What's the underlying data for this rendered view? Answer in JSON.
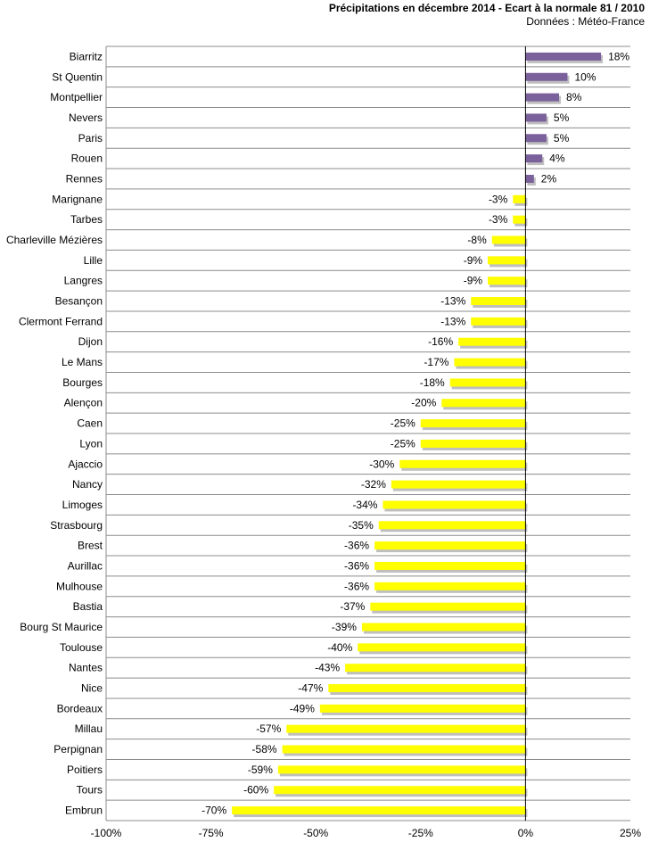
{
  "chart_data": {
    "type": "bar",
    "orientation": "horizontal",
    "title": "Précipitations en décembre 2014 - Ecart à la normale 81 / 2010",
    "subtitle": "Données : Météo-France",
    "categories": [
      "Biarritz",
      "St Quentin",
      "Montpellier",
      "Nevers",
      "Paris",
      "Rouen",
      "Rennes",
      "Marignane",
      "Tarbes",
      "Charleville Mézières",
      "Lille",
      "Langres",
      "Besançon",
      "Clermont Ferrand",
      "Dijon",
      "Le Mans",
      "Bourges",
      "Alençon",
      "Caen",
      "Lyon",
      "Ajaccio",
      "Nancy",
      "Limoges",
      "Strasbourg",
      "Brest",
      "Aurillac",
      "Mulhouse",
      "Bastia",
      "Bourg St Maurice",
      "Toulouse",
      "Nantes",
      "Nice",
      "Bordeaux",
      "Millau",
      "Perpignan",
      "Poitiers",
      "Tours",
      "Embrun"
    ],
    "values": [
      18,
      10,
      8,
      5,
      5,
      4,
      2,
      -3,
      -3,
      -8,
      -9,
      -9,
      -13,
      -13,
      -16,
      -17,
      -18,
      -20,
      -25,
      -25,
      -30,
      -32,
      -34,
      -35,
      -36,
      -36,
      -36,
      -37,
      -39,
      -40,
      -43,
      -47,
      -49,
      -57,
      -58,
      -59,
      -60,
      -70
    ],
    "value_labels": [
      "18%",
      "10%",
      "8%",
      "5%",
      "5%",
      "4%",
      "2%",
      "-3%",
      "-3%",
      "-8%",
      "-9%",
      "-9%",
      "-13%",
      "-13%",
      "-16%",
      "-17%",
      "-18%",
      "-20%",
      "-25%",
      "-25%",
      "-30%",
      "-32%",
      "-34%",
      "-35%",
      "-36%",
      "-36%",
      "-36%",
      "-37%",
      "-39%",
      "-40%",
      "-43%",
      "-47%",
      "-49%",
      "-57%",
      "-58%",
      "-59%",
      "-60%",
      "-70%"
    ],
    "xlim": [
      -100,
      25
    ],
    "xticks": [
      -100,
      -75,
      -50,
      -25,
      0,
      25
    ],
    "xtick_labels": [
      "-100%",
      "-75%",
      "-50%",
      "-25%",
      "0%",
      "25%"
    ],
    "grid": "horizontal",
    "colors": {
      "positive": "#7b619c",
      "negative": "#ffff00",
      "shadow": "#bfbfbf",
      "grid": "#8c8c8c"
    }
  }
}
